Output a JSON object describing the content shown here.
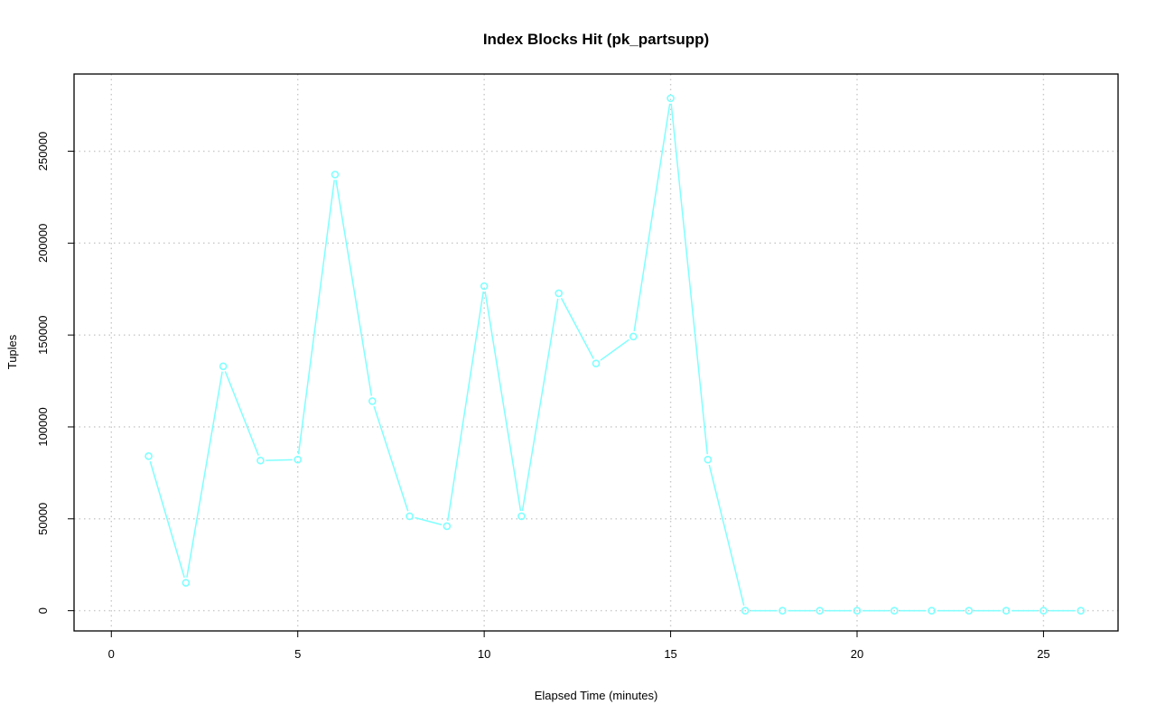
{
  "chart_data": {
    "type": "line",
    "title": "Index Blocks Hit (pk_partsupp)",
    "xlabel": "Elapsed Time (minutes)",
    "ylabel": "Tuples",
    "xlim": [
      -1,
      27
    ],
    "ylim": [
      -11000,
      292000
    ],
    "xticks": [
      0,
      5,
      10,
      15,
      20,
      25
    ],
    "yticks": [
      0,
      50000,
      100000,
      150000,
      200000,
      250000
    ],
    "grid": true,
    "markers": "open-circle",
    "color": "#80ffff",
    "x": [
      1,
      2,
      3,
      4,
      5,
      6,
      7,
      8,
      9,
      10,
      11,
      12,
      13,
      14,
      15,
      16,
      17,
      18,
      19,
      20,
      21,
      22,
      23,
      24,
      25,
      26
    ],
    "y": [
      84100,
      15200,
      133000,
      81700,
      82200,
      237300,
      114000,
      51400,
      46000,
      176600,
      51400,
      172700,
      134500,
      149200,
      278800,
      82200,
      0,
      0,
      0,
      0,
      0,
      0,
      0,
      0,
      0,
      0
    ]
  }
}
